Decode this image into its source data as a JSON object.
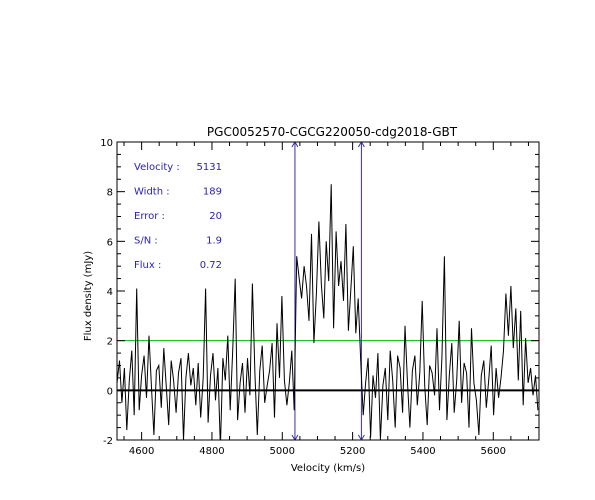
{
  "chart_data": {
    "type": "line",
    "title": "PGC0052570-CGCG220050-cdg2018-GBT",
    "xlabel": "Velocity (km/s)",
    "ylabel": "Flux density (mJy)",
    "xlim": [
      4530,
      5730
    ],
    "ylim": [
      -2,
      10
    ],
    "x_ticks": [
      "4600",
      "4800",
      "5000",
      "5200",
      "5400",
      "5600"
    ],
    "y_ticks": [
      "-2",
      "0",
      "2",
      "4",
      "6",
      "8",
      "10"
    ],
    "grid": false,
    "colors": {
      "spectrum": "#000000",
      "zero_line": "#000000",
      "noise_line": "#00bb00",
      "window_lines": "#3a2ea8",
      "stats_text": "#2a1fb0"
    },
    "stats": [
      {
        "label": "Velocity :",
        "value": "5131"
      },
      {
        "label": "Width :",
        "value": "189"
      },
      {
        "label": "Error :",
        "value": "20"
      },
      {
        "label": "S/N :",
        "value": "1.9"
      },
      {
        "label": "Flux :",
        "value": "0.72"
      }
    ],
    "reference_lines": {
      "zero": 0,
      "noise_level": 2.0,
      "velocity_window": [
        5036,
        5225
      ]
    },
    "series": [
      {
        "x": [
          4530,
          4537,
          4544,
          4551,
          4558,
          4565,
          4572,
          4579,
          4586,
          4593,
          4600,
          4607,
          4614,
          4621,
          4628,
          4635,
          4642,
          4649,
          4656,
          4663,
          4670,
          4677,
          4684,
          4691,
          4698,
          4705,
          4712,
          4719,
          4726,
          4733,
          4740,
          4747,
          4754,
          4761,
          4768,
          4775,
          4782,
          4789,
          4796,
          4803,
          4810,
          4817,
          4824,
          4831,
          4838,
          4845,
          4852,
          4859,
          4866,
          4873,
          4880,
          4887,
          4894,
          4901,
          4908,
          4915,
          4922,
          4929,
          4936,
          4943,
          4950,
          4957,
          4964,
          4971,
          4978,
          4985,
          4992,
          4999,
          5006,
          5013,
          5020,
          5027,
          5034,
          5041,
          5048,
          5055,
          5062,
          5069,
          5076,
          5083,
          5090,
          5097,
          5104,
          5111,
          5118,
          5125,
          5132,
          5139,
          5146,
          5153,
          5160,
          5167,
          5174,
          5181,
          5188,
          5195,
          5202,
          5209,
          5216,
          5223,
          5230,
          5237,
          5244,
          5251,
          5258,
          5265,
          5272,
          5279,
          5286,
          5293,
          5300,
          5307,
          5314,
          5321,
          5328,
          5335,
          5342,
          5349,
          5356,
          5363,
          5370,
          5377,
          5384,
          5391,
          5398,
          5405,
          5412,
          5419,
          5426,
          5433,
          5440,
          5447,
          5454,
          5461,
          5468,
          5475,
          5482,
          5489,
          5496,
          5503,
          5510,
          5517,
          5524,
          5531,
          5538,
          5545,
          5552,
          5559,
          5566,
          5573,
          5580,
          5587,
          5594,
          5601,
          5608,
          5615,
          5622,
          5629,
          5636,
          5643,
          5650,
          5657,
          5664,
          5671,
          5678,
          5685,
          5692,
          5699,
          5706,
          5713,
          5720,
          5727
        ],
        "y": [
          0.3,
          1.2,
          -0.5,
          0.9,
          -1.6,
          0.4,
          1.6,
          -1.0,
          4.1,
          -0.8,
          0.6,
          1.4,
          -0.3,
          2.2,
          0.1,
          -1.8,
          0.8,
          1.0,
          -0.7,
          1.7,
          0.2,
          -1.4,
          1.2,
          0.4,
          -0.9,
          0.7,
          1.3,
          -2.0,
          0.5,
          1.5,
          0.2,
          0.9,
          -0.6,
          1.1,
          -1.1,
          0.5,
          4.1,
          -1.3,
          0.6,
          1.5,
          -0.4,
          0.9,
          -2.3,
          1.3,
          0.4,
          2.2,
          -0.8,
          1.6,
          4.5,
          -1.2,
          0.3,
          1.1,
          -0.9,
          1.3,
          -0.2,
          4.3,
          0.7,
          -1.8,
          0.8,
          1.8,
          -0.5,
          0.2,
          0.8,
          1.9,
          -1.1,
          2.7,
          0.5,
          3.8,
          0.4,
          -0.6,
          0.3,
          1.6,
          -0.8,
          5.4,
          4.5,
          3.7,
          5.0,
          4.2,
          2.8,
          6.3,
          1.9,
          3.9,
          6.8,
          4.3,
          2.9,
          6.0,
          4.4,
          8.3,
          2.5,
          6.4,
          4.2,
          5.2,
          3.6,
          6.7,
          2.4,
          4.1,
          5.8,
          2.3,
          3.7,
          1.2,
          -1.0,
          0.3,
          1.3,
          -1.9,
          0.6,
          -0.3,
          1.5,
          -2.0,
          0.2,
          0.9,
          -1.2,
          1.6,
          0.4,
          -1.5,
          1.4,
          0.9,
          -0.9,
          2.6,
          0.3,
          -1.5,
          0.8,
          1.4,
          -0.6,
          0.7,
          3.6,
          0.2,
          -1.4,
          1.0,
          0.7,
          -0.2,
          2.5,
          -0.8,
          1.3,
          5.4,
          -1.2,
          0.6,
          1.9,
          -0.9,
          0.4,
          2.8,
          -0.5,
          1.1,
          0.7,
          -1.5,
          2.5,
          0.3,
          -0.4,
          -1.8,
          0.6,
          1.2,
          -0.7,
          0.4,
          1.8,
          -1.0,
          0.9,
          -0.3,
          0.5,
          1.6,
          3.9,
          2.2,
          4.2,
          1.7,
          3.3,
          0.4,
          3.2,
          -0.6,
          2.1,
          0.3,
          0.9,
          -0.2,
          0.6,
          -0.8
        ]
      }
    ]
  }
}
